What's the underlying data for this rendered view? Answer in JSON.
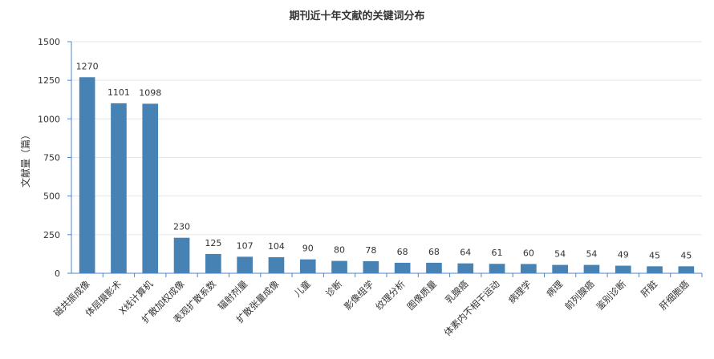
{
  "chart_data": {
    "type": "bar",
    "title": "期刊近十年文献的关键词分布",
    "xlabel": "",
    "ylabel": "文献量（篇）",
    "ylim": [
      0,
      1500
    ],
    "yticks": [
      0,
      250,
      500,
      750,
      1000,
      1250,
      1500
    ],
    "grid": true,
    "bar_color": "#4682b4",
    "categories": [
      "磁共振成像",
      "体层摄影术",
      "X线计算机",
      "扩散加权成像",
      "表观扩散系数",
      "辐射剂量",
      "扩散张量成像",
      "儿童",
      "诊断",
      "影像组学",
      "纹理分析",
      "图像质量",
      "乳腺癌",
      "体素内不相干运动",
      "病理学",
      "病理",
      "前列腺癌",
      "鉴别诊断",
      "肝脏",
      "肝细胞癌"
    ],
    "values": [
      1270,
      1101,
      1098,
      230,
      125,
      107,
      104,
      90,
      80,
      78,
      68,
      68,
      64,
      61,
      60,
      54,
      54,
      49,
      45,
      45
    ]
  }
}
